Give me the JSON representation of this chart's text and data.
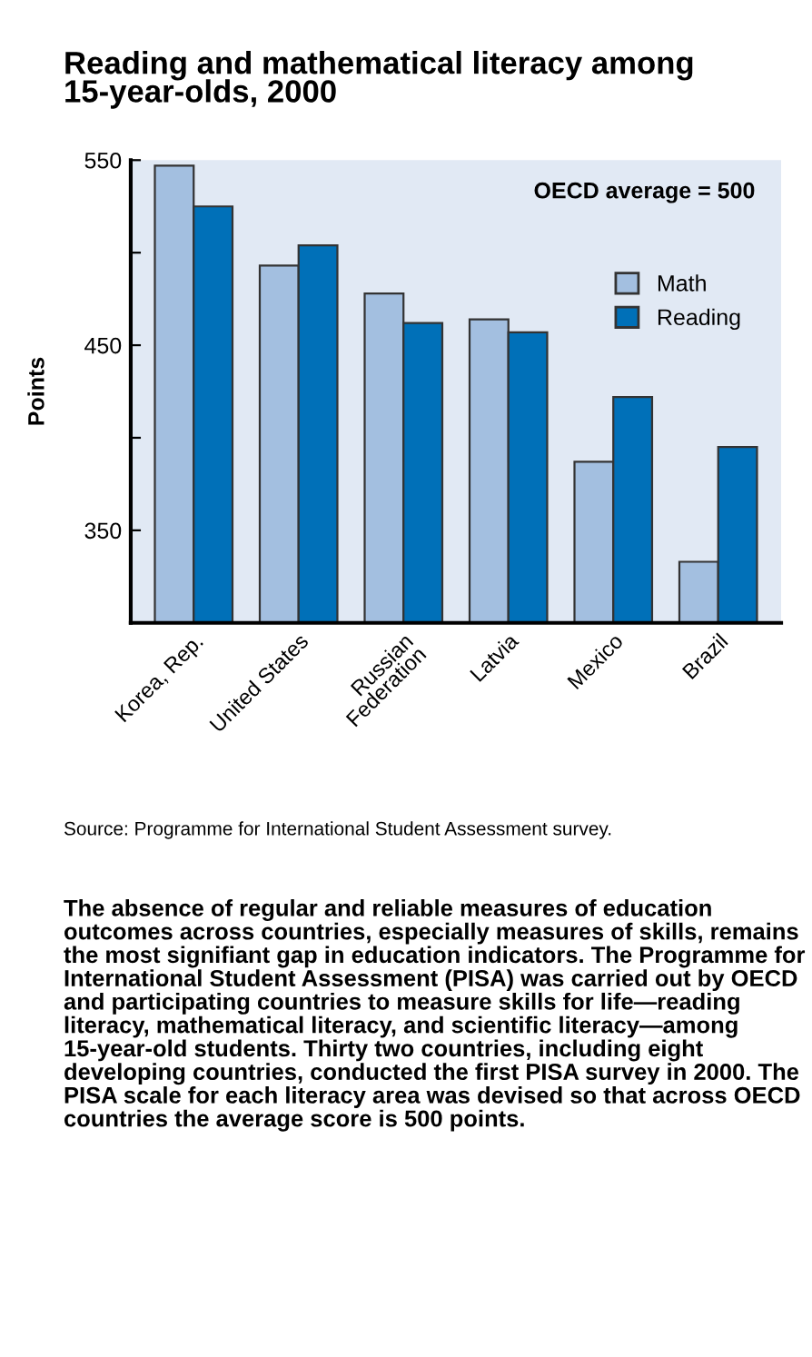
{
  "chart_data": {
    "type": "bar",
    "title": "Reading and mathematical literacy among\n15-year-olds, 2000",
    "ylabel": "Points",
    "categories": [
      "Korea, Rep.",
      "United States",
      "Russian\nFederation",
      "Latvia",
      "Mexico",
      "Brazil"
    ],
    "series": [
      {
        "name": "Math",
        "color": "#a3bfe0",
        "values": [
          547,
          493,
          478,
          464,
          387,
          333
        ]
      },
      {
        "name": "Reading",
        "color": "#0070b8",
        "values": [
          525,
          504,
          462,
          457,
          422,
          395
        ]
      }
    ],
    "ylim": [
      300,
      550
    ],
    "yticks": [
      {
        "value": 350,
        "label": "350"
      },
      {
        "value": 400,
        "label": null
      },
      {
        "value": 450,
        "label": "450"
      },
      {
        "value": 500,
        "label": null
      },
      {
        "value": 550,
        "label": "550"
      }
    ],
    "grid": false,
    "legend": "top right",
    "annotations": [
      "OECD average = 500",
      "Source: Programme for International Student Assessment survey.",
      "The absence of regular and reliable measures of education outcomes across countries, especially measures of skills, remains the most signifiant gap in education indicators. The Programme for International Student Assessment (PISA) was carried out by OECD and participating countries to measure skills for life—reading literacy, mathematical literacy, and scientific literacy—among 15-year-old students. Thirty two countries, including eight developing countries, conducted the first PISA survey in 2000. The PISA scale for each literacy area was devised so that across OECD countries the average score is 500 points."
    ]
  }
}
